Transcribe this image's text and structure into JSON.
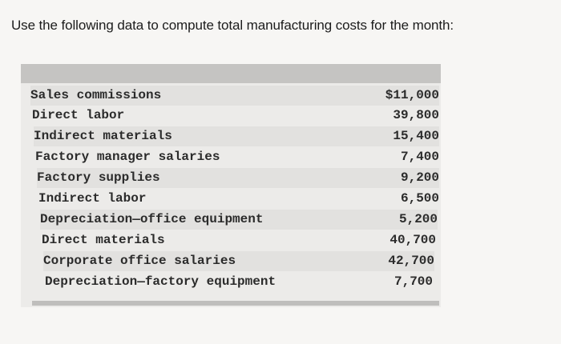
{
  "question": "Use the following data to compute total manufacturing costs for the month:",
  "table": {
    "rows": [
      {
        "label": "Sales commissions",
        "amount": "$11,000"
      },
      {
        "label": "Direct labor",
        "amount": "39,800"
      },
      {
        "label": "Indirect materials",
        "amount": "15,400"
      },
      {
        "label": "Factory manager salaries",
        "amount": "7,400"
      },
      {
        "label": "Factory supplies",
        "amount": "9,200"
      },
      {
        "label": "Indirect labor",
        "amount": "6,500"
      },
      {
        "label": "Depreciation—office equipment",
        "amount": "5,200"
      },
      {
        "label": "Direct materials",
        "amount": "40,700"
      },
      {
        "label": "Corporate office salaries",
        "amount": "42,700"
      },
      {
        "label": "Depreciation—factory equipment",
        "amount": "7,700"
      }
    ]
  }
}
